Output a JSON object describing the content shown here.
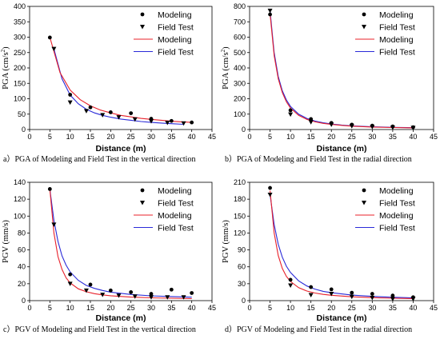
{
  "chart_data": [
    {
      "type": "scatter",
      "caption": "a）PGA of Modeling and Field Test  in the vertical direction",
      "xlabel": "Distance (m)",
      "ylabel": "PGA (cm/s",
      "ylabel_sup": "2",
      "ylabel_end": ")",
      "xlim": [
        0,
        45
      ],
      "xticks": [
        0,
        5,
        10,
        15,
        20,
        25,
        30,
        35,
        40,
        45
      ],
      "ylim": [
        0,
        400
      ],
      "yticks": [
        0,
        50,
        100,
        150,
        200,
        250,
        300,
        350,
        400
      ],
      "legend": [
        "Modeling",
        "Field Test",
        "Modeling",
        "Field Test"
      ],
      "modeling_points": {
        "x": [
          5,
          10,
          15,
          20,
          25,
          30,
          35,
          40
        ],
        "y": [
          299,
          113,
          72,
          56,
          53,
          35,
          28,
          23
        ]
      },
      "field_points": {
        "x": [
          6,
          10,
          14,
          18,
          22,
          26,
          30,
          34,
          38
        ],
        "y": [
          262,
          88,
          60,
          47,
          40,
          33,
          27,
          22,
          20
        ]
      },
      "modeling_curve": {
        "x": [
          5,
          7.5,
          10,
          12.5,
          15,
          17.5,
          20,
          22.5,
          25,
          27.5,
          30,
          32.5,
          35,
          37.5,
          40
        ],
        "y": [
          300,
          185,
          128,
          97,
          77,
          63,
          54,
          46,
          41,
          36,
          33,
          30,
          27,
          25,
          23
        ]
      },
      "field_curve": {
        "x": [
          6,
          8,
          10,
          12,
          14,
          16,
          18,
          20,
          22.5,
          25,
          27.5,
          30,
          32.5,
          35,
          38
        ],
        "y": [
          262,
          165,
          112,
          84,
          66,
          54,
          46,
          40,
          34,
          30,
          26,
          23,
          21,
          19,
          17
        ]
      }
    },
    {
      "type": "scatter",
      "caption": "b）PGA of Modeling and Field Test in the radial direction",
      "xlabel": "Distance (m)",
      "ylabel": "PGA (cm/s",
      "ylabel_sup": "2",
      "ylabel_end": ")",
      "xlim": [
        0,
        45
      ],
      "xticks": [
        0,
        5,
        10,
        15,
        20,
        25,
        30,
        35,
        40,
        45
      ],
      "ylim": [
        0,
        800
      ],
      "yticks": [
        0,
        100,
        200,
        300,
        400,
        500,
        600,
        700,
        800
      ],
      "legend": [
        "Modeling",
        "Field Test",
        "Modeling",
        "Field Test"
      ],
      "modeling_points": {
        "x": [
          5,
          10,
          15,
          20,
          25,
          30,
          35,
          40
        ],
        "y": [
          748,
          125,
          68,
          43,
          32,
          25,
          20,
          15
        ]
      },
      "field_points": {
        "x": [
          5,
          10,
          15,
          20,
          25,
          30,
          35,
          40
        ],
        "y": [
          772,
          98,
          48,
          32,
          22,
          17,
          13,
          11
        ]
      },
      "modeling_curve": {
        "x": [
          5,
          6,
          7,
          8,
          9,
          10,
          12,
          14,
          16,
          18,
          20,
          22.5,
          25,
          30,
          35,
          40
        ],
        "y": [
          750,
          480,
          330,
          240,
          180,
          140,
          92,
          66,
          50,
          40,
          33,
          27,
          22,
          16,
          13,
          11
        ]
      },
      "field_curve": {
        "x": [
          5,
          6,
          7,
          8,
          9,
          10,
          12,
          14,
          16,
          18,
          20,
          22.5,
          25,
          30,
          35,
          40
        ],
        "y": [
          770,
          500,
          345,
          252,
          192,
          150,
          100,
          72,
          55,
          44,
          36,
          29,
          24,
          18,
          14,
          12
        ]
      }
    },
    {
      "type": "scatter",
      "caption": "c）PGV of Modeling and Field Test  in the vertical direction",
      "xlabel": "Distance (m)",
      "ylabel": "PGV (mm/s)",
      "xlim": [
        0,
        45
      ],
      "xticks": [
        0,
        5,
        10,
        15,
        20,
        25,
        30,
        35,
        40,
        45
      ],
      "ylim": [
        0,
        140
      ],
      "yticks": [
        0,
        20,
        40,
        60,
        80,
        100,
        120,
        140
      ],
      "legend": [
        "Modeling",
        "Field Test",
        "Modeling",
        "Field Test"
      ],
      "modeling_points": {
        "x": [
          5,
          10,
          15,
          20,
          25,
          30,
          35,
          40
        ],
        "y": [
          132,
          31,
          19,
          12,
          10,
          8,
          13,
          9
        ]
      },
      "field_points": {
        "x": [
          6,
          10,
          14,
          18,
          22,
          26,
          30,
          34,
          38
        ],
        "y": [
          90,
          20,
          12,
          7,
          6,
          5,
          4,
          4,
          4
        ]
      },
      "modeling_curve": {
        "x": [
          5,
          6,
          7,
          8,
          9,
          10,
          12,
          14,
          16,
          18,
          20,
          25,
          30,
          35,
          40
        ],
        "y": [
          132,
          80,
          52,
          37,
          27,
          21,
          14,
          10.5,
          8.2,
          6.8,
          5.8,
          4.2,
          3.3,
          2.8,
          2.4
        ]
      },
      "field_curve": {
        "x": [
          5,
          6,
          7,
          8,
          9,
          10,
          12,
          14,
          16,
          18,
          20,
          25,
          30,
          35,
          40
        ],
        "y": [
          132,
          95,
          70,
          53,
          42,
          34,
          24,
          18,
          14.5,
          12,
          10,
          7.3,
          5.7,
          4.8,
          4.1
        ]
      }
    },
    {
      "type": "scatter",
      "caption": "d）PGV of Modeling and Field Test in the radial direction",
      "xlabel": "Distance (m)",
      "ylabel": "PGV (mm/s)",
      "xlim": [
        0,
        45
      ],
      "xticks": [
        0,
        5,
        10,
        15,
        20,
        25,
        30,
        35,
        40,
        45
      ],
      "ylim": [
        0,
        210
      ],
      "yticks": [
        0,
        30,
        60,
        90,
        120,
        150,
        180,
        210
      ],
      "legend": [
        "Modeling",
        "Field Test",
        "Modeling",
        "Field Test"
      ],
      "modeling_points": {
        "x": [
          5,
          10,
          15,
          20,
          25,
          30,
          35,
          40
        ],
        "y": [
          200,
          37,
          24,
          20,
          14,
          12,
          9,
          6
        ]
      },
      "field_points": {
        "x": [
          5,
          10,
          15,
          20,
          25,
          30,
          35,
          40
        ],
        "y": [
          188,
          27,
          10,
          12,
          7,
          5,
          3,
          3
        ]
      },
      "modeling_curve": {
        "x": [
          5,
          6,
          7,
          8,
          9,
          10,
          12,
          14,
          16,
          18,
          20,
          25,
          30,
          35,
          40
        ],
        "y": [
          195,
          120,
          80,
          57,
          43,
          34,
          23,
          17,
          13.5,
          11,
          9.5,
          6.8,
          5.3,
          4.3,
          3.6
        ]
      },
      "field_curve": {
        "x": [
          5,
          6,
          7,
          8,
          9,
          10,
          12,
          14,
          16,
          18,
          20,
          25,
          30,
          35,
          40
        ],
        "y": [
          188,
          135,
          100,
          77,
          61,
          50,
          35,
          26,
          20.5,
          16.5,
          14,
          9.8,
          7.5,
          6,
          5
        ]
      }
    }
  ]
}
